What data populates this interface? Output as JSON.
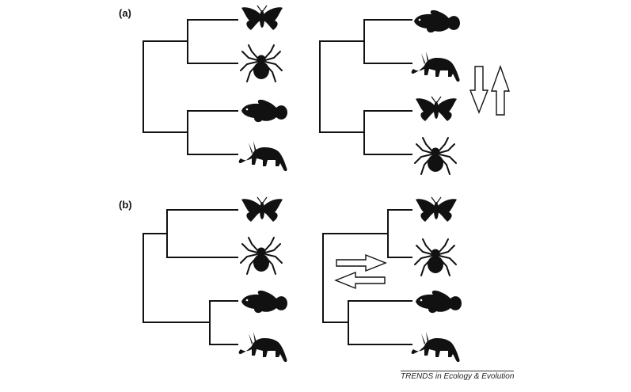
{
  "figure": {
    "panels": [
      {
        "id": "a",
        "label": "(a)"
      },
      {
        "id": "b",
        "label": "(b)"
      }
    ],
    "taxa": [
      "moth",
      "spider",
      "fish",
      "aardvark"
    ],
    "icons": [
      "moth-icon",
      "spider-icon",
      "fish-icon",
      "aardvark-icon",
      "double-arrow-vertical-icon",
      "double-arrow-horizontal-icon"
    ],
    "colors": {
      "ink": "#111111",
      "background": "#ffffff"
    },
    "source": "TRENDS in Ecology & Evolution"
  }
}
